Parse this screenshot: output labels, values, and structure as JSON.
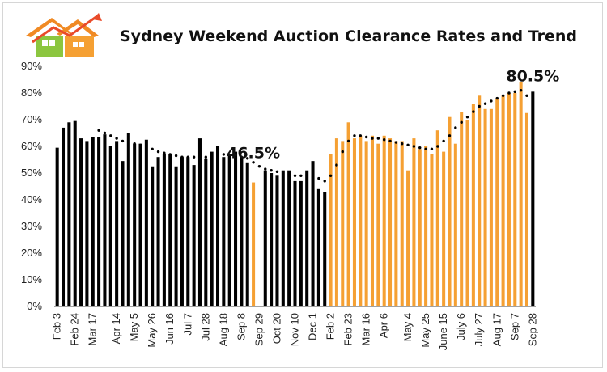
{
  "title": "Sydney Weekend Auction Clearance Rates and Trend",
  "logo": {
    "icon": "house-chart-logo-icon",
    "roof_color": "#f08a24",
    "house_color": "#8cc63f",
    "arrow_color": "#e94b2a"
  },
  "colors": {
    "black_series": "#000000",
    "orange_series": "#f5a033",
    "trend": "#000000"
  },
  "chart_data": {
    "type": "bar",
    "title": "Sydney Weekend Auction Clearance Rates and Trend",
    "xlabel": "",
    "ylabel": "",
    "ylim": [
      0,
      90
    ],
    "y_ticks": [
      "0%",
      "10%",
      "20%",
      "30%",
      "40%",
      "50%",
      "60%",
      "70%",
      "80%",
      "90%"
    ],
    "grid": false,
    "x_tick_labels": [
      "Feb 3",
      "Feb 24",
      "Mar 17",
      "Apr 14",
      "May 5",
      "May 26",
      "Jun 16",
      "Jul 7",
      "Jul 28",
      "Aug 18",
      "Sep 8",
      "Sep 29",
      "Oct 20",
      "Nov 10",
      "Dec 1",
      "Feb 2",
      "Feb 23",
      "Mar 16",
      "Apr 6",
      "May 4",
      "May 25",
      "June 15",
      "July 6",
      "July 27",
      "Aug 17",
      "Sep 7",
      "Sep 28"
    ],
    "x_tick_indices": [
      0,
      3,
      6,
      10,
      13,
      16,
      19,
      22,
      25,
      28,
      31,
      34,
      37,
      40,
      43,
      46,
      49,
      52,
      55,
      59,
      62,
      65,
      68,
      71,
      74,
      77,
      80
    ],
    "series": [
      {
        "color": "black",
        "values": [
          59.5,
          67,
          69,
          69.5,
          63,
          62,
          63.5,
          63.5,
          64.5,
          60,
          62,
          54.5,
          65,
          61,
          61,
          62.5,
          52.5,
          56,
          57,
          57,
          52.5,
          56,
          56,
          53,
          63,
          55.5,
          58,
          60,
          56,
          57,
          58,
          56,
          54,
          null,
          null,
          51,
          50,
          49,
          51,
          51,
          47,
          47,
          51,
          54.5,
          44,
          43,
          null,
          null,
          null,
          null,
          null,
          null,
          null,
          null,
          null,
          null,
          null,
          null,
          null,
          null,
          null,
          null,
          null,
          null,
          null,
          null,
          null,
          null,
          null,
          null,
          null,
          null,
          null,
          null,
          null,
          null,
          null,
          null,
          null,
          null,
          80.5
        ]
      },
      {
        "color": "orange",
        "values": [
          null,
          null,
          null,
          null,
          null,
          null,
          null,
          null,
          null,
          null,
          null,
          null,
          null,
          null,
          null,
          null,
          null,
          null,
          null,
          null,
          null,
          null,
          null,
          null,
          null,
          null,
          null,
          null,
          null,
          null,
          null,
          null,
          null,
          46.5,
          null,
          null,
          null,
          null,
          null,
          null,
          null,
          null,
          null,
          null,
          null,
          null,
          57,
          63,
          62,
          69,
          63,
          64,
          62,
          64,
          61,
          64,
          63,
          62,
          62,
          51,
          63,
          59,
          60,
          57,
          66,
          58,
          71,
          61,
          73,
          70,
          76,
          79,
          74,
          74,
          78,
          79,
          80,
          80,
          84,
          72.5,
          null
        ]
      },
      {
        "name": "Trend",
        "type": "dotted-line",
        "values": [
          null,
          null,
          null,
          null,
          null,
          null,
          null,
          66,
          65,
          64,
          63,
          62,
          61.5,
          61,
          60.5,
          60,
          59,
          58,
          57.5,
          57,
          56.5,
          56,
          56,
          56,
          56,
          56,
          56.5,
          57,
          57,
          56.5,
          56,
          56,
          55.5,
          54,
          52.5,
          51.5,
          51,
          50.5,
          50,
          49.5,
          49,
          49,
          49,
          48.5,
          48,
          47,
          49,
          53,
          58,
          62,
          64,
          64,
          63.5,
          63,
          63,
          62.5,
          62,
          61.5,
          61,
          60.5,
          60,
          59.5,
          59,
          59,
          60,
          62,
          64,
          67,
          69,
          71,
          73,
          75,
          76,
          77,
          78,
          79,
          80,
          80.5,
          81,
          79,
          78
        ]
      }
    ],
    "annotations": [
      {
        "text": "46.5%",
        "index": 33,
        "value": 46.5
      },
      {
        "text": "80.5%",
        "index": 80,
        "value": 80.5
      }
    ]
  }
}
